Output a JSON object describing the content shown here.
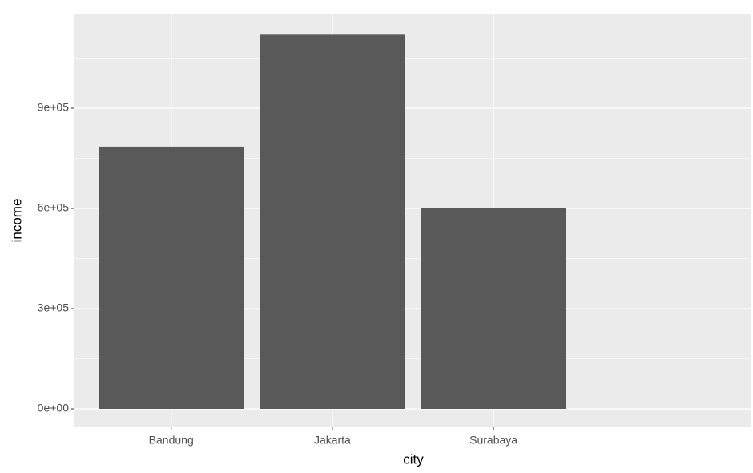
{
  "chart_data": {
    "type": "bar",
    "x_label": "city",
    "y_label": "income",
    "categories": [
      "Bandung",
      "Jakarta",
      "Surabaya"
    ],
    "values": [
      785000,
      1120000,
      600000
    ],
    "color": "#595959",
    "ylim": [
      -52800,
      1180800
    ],
    "yticks": [
      {
        "value": 0,
        "label": "0e+00"
      },
      {
        "value": 300000,
        "label": "3e+05"
      },
      {
        "value": 600000,
        "label": "6e+05"
      },
      {
        "value": 900000,
        "label": "9e+05"
      }
    ],
    "minor_yticks": [
      150000,
      450000,
      750000,
      1050000
    ],
    "grid": true
  }
}
